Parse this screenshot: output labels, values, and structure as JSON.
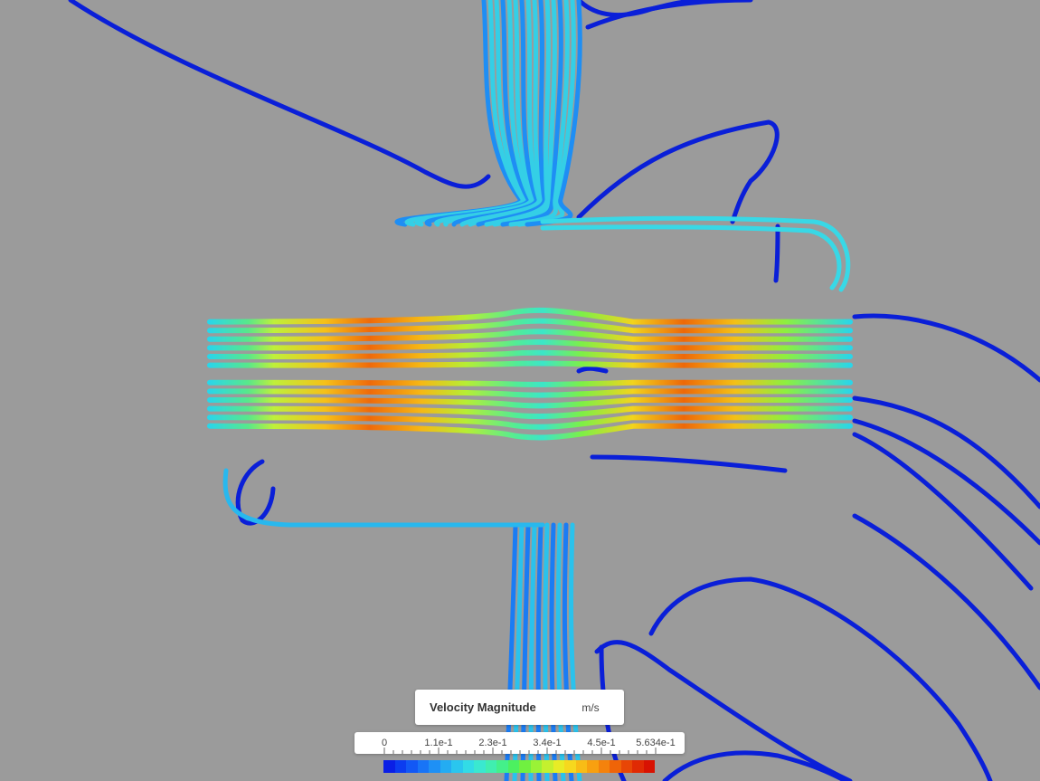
{
  "legend": {
    "title": "Velocity Magnitude",
    "unit": "m/s",
    "ticks": [
      "0",
      "1.1e-1",
      "2.3e-1",
      "3.4e-1",
      "4.5e-1",
      "5.634e-1"
    ],
    "min": 0,
    "max": 0.5634
  },
  "colors": {
    "background": "#9b9b9b",
    "colormap": [
      "#0a1fe6",
      "#0c3cf0",
      "#1258f5",
      "#1874f7",
      "#1e90f5",
      "#24acf2",
      "#2ac6ee",
      "#32dbe6",
      "#3ae8d0",
      "#40eeb0",
      "#44f08a",
      "#4cf060",
      "#70f040",
      "#9af236",
      "#c4f02e",
      "#e8ec26",
      "#f6d81e",
      "#f8bc16",
      "#f8a010",
      "#f4820c",
      "#ef6408",
      "#e84606",
      "#e02a04",
      "#d81202"
    ]
  },
  "scene": {
    "content": "streamlines"
  }
}
